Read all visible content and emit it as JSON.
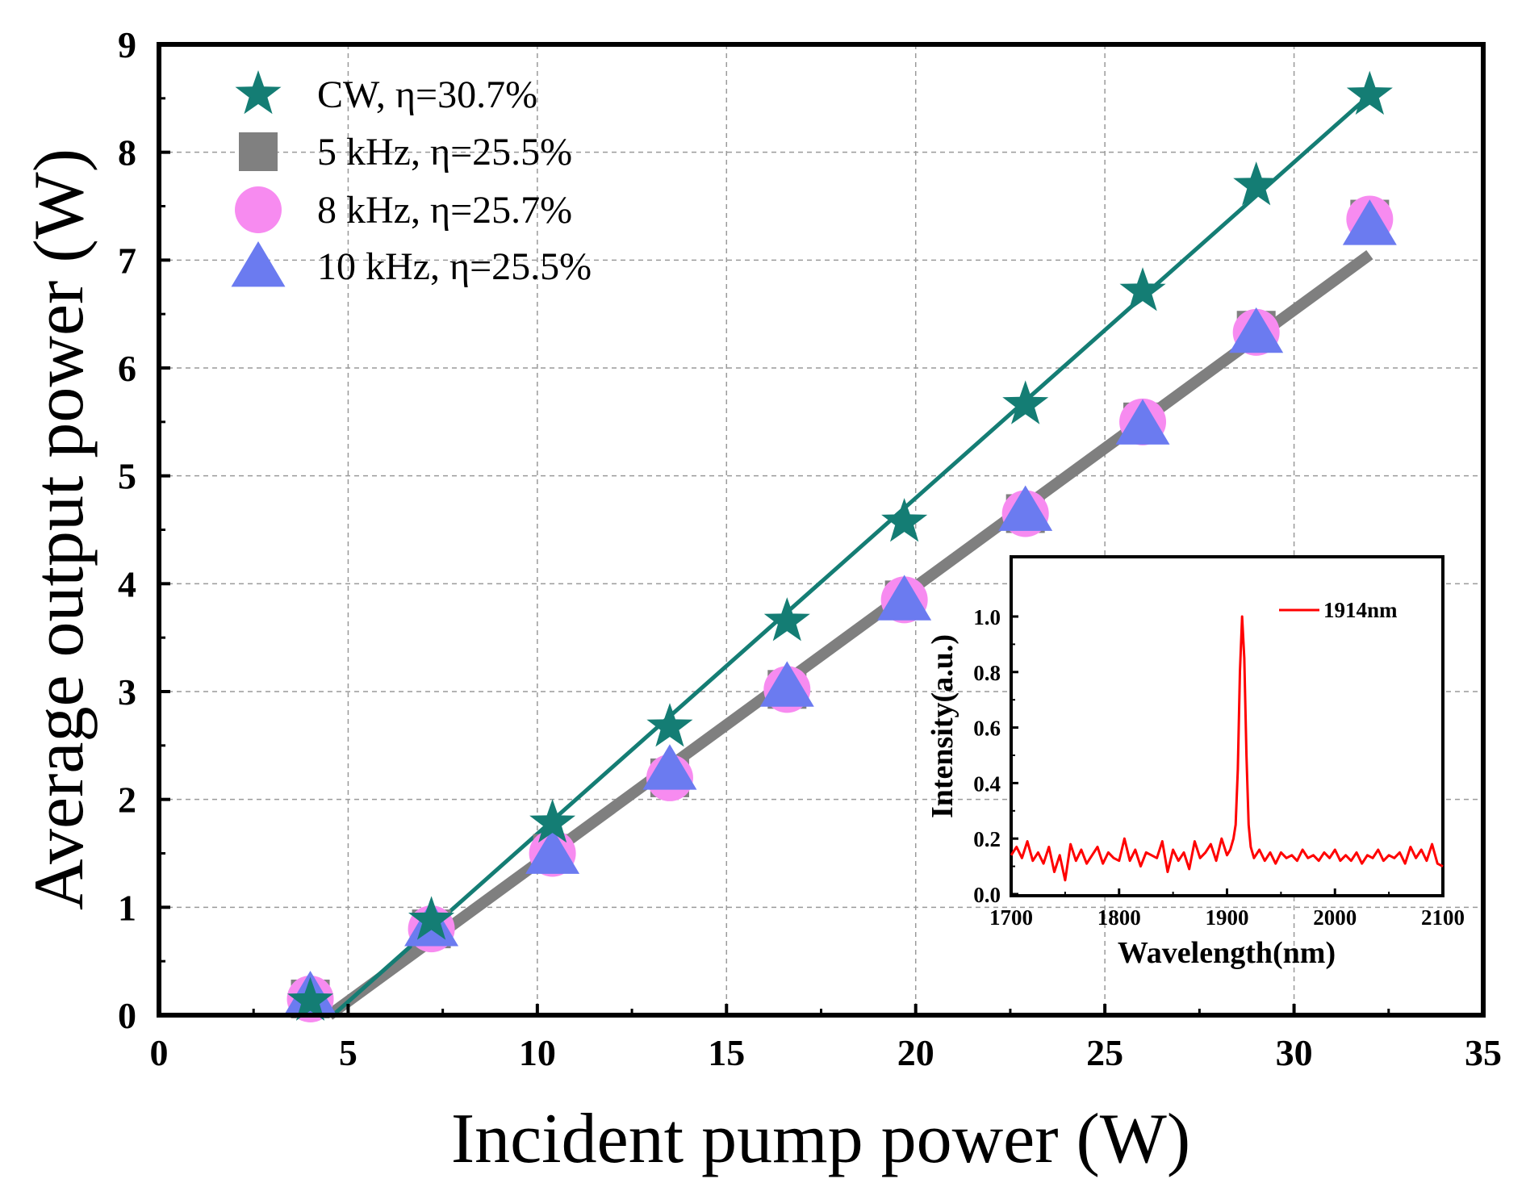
{
  "colors": {
    "cw": "#147D74",
    "fit_pulsed": "#7F7F7F",
    "square_5k": "#808080",
    "circle_8k": "#F78BF0",
    "triangle_10k": "#6B7BF0",
    "inset_line": "#FF0000",
    "grid": "#9A9A9A"
  },
  "chart_data": [
    {
      "type": "scatter",
      "xlabel": "Incident pump power (W)",
      "ylabel": "Average output power (W)",
      "xlim": [
        0,
        35
      ],
      "ylim": [
        0,
        9
      ],
      "xticks": [
        "0",
        "5",
        "10",
        "15",
        "20",
        "25",
        "30",
        "35"
      ],
      "yticks": [
        "0",
        "1",
        "2",
        "3",
        "4",
        "5",
        "6",
        "7",
        "8",
        "9"
      ],
      "grid": true,
      "legend_position": "top-left",
      "series": [
        {
          "name": "CW, η=30.7%",
          "marker": "star",
          "x": [
            4.0,
            7.2,
            10.4,
            13.5,
            16.6,
            19.7,
            22.9,
            26.0,
            29.0,
            32.0
          ],
          "y": [
            0.13,
            0.88,
            1.78,
            2.67,
            3.65,
            4.57,
            5.66,
            6.71,
            7.69,
            8.53
          ],
          "fit": [
            [
              4.6,
              0.0
            ],
            [
              32.0,
              8.53
            ]
          ]
        },
        {
          "name": "5 kHz, η=25.5%",
          "marker": "square",
          "x": [
            4.0,
            7.2,
            10.4,
            13.5,
            16.6,
            19.7,
            22.9,
            26.0,
            29.0,
            32.0
          ],
          "y": [
            0.15,
            0.8,
            1.5,
            2.2,
            3.02,
            3.85,
            4.65,
            5.5,
            6.35,
            7.38
          ],
          "fit": [
            [
              4.5,
              0.0
            ],
            [
              32.0,
              7.05
            ]
          ]
        },
        {
          "name": "8 kHz, η=25.7%",
          "marker": "circle",
          "x": [
            4.0,
            7.2,
            10.4,
            13.5,
            16.6,
            19.7,
            22.9,
            26.0,
            29.0,
            32.0
          ],
          "y": [
            0.15,
            0.8,
            1.5,
            2.2,
            3.02,
            3.85,
            4.65,
            5.5,
            6.33,
            7.38
          ]
        },
        {
          "name": "10 kHz, η=25.5%",
          "marker": "triangle",
          "x": [
            4.0,
            7.2,
            10.4,
            13.5,
            16.6,
            19.7,
            22.9,
            26.0,
            29.0,
            32.0
          ],
          "y": [
            0.18,
            0.83,
            1.5,
            2.28,
            3.05,
            3.85,
            4.68,
            5.48,
            6.33,
            7.33
          ]
        }
      ]
    },
    {
      "type": "line",
      "xlabel": "Wavelength(nm)",
      "ylabel": "Intensity(a.u.)",
      "xlim": [
        1700,
        2100
      ],
      "ylim": [
        0.0,
        1.0
      ],
      "xticks": [
        "1700",
        "1800",
        "1900",
        "2000",
        "2100"
      ],
      "yticks": [
        "0.0",
        "0.2",
        "0.4",
        "0.6",
        "0.8",
        "1.0"
      ],
      "grid": false,
      "legend_position": "top-right",
      "series": [
        {
          "name": "1914nm",
          "x": [
            1700,
            1705,
            1710,
            1715,
            1720,
            1725,
            1730,
            1735,
            1740,
            1745,
            1750,
            1755,
            1760,
            1765,
            1770,
            1775,
            1780,
            1785,
            1790,
            1795,
            1800,
            1805,
            1810,
            1815,
            1820,
            1825,
            1830,
            1835,
            1840,
            1845,
            1850,
            1855,
            1860,
            1865,
            1870,
            1875,
            1880,
            1885,
            1890,
            1895,
            1900,
            1903,
            1906,
            1908,
            1910,
            1912,
            1914,
            1916,
            1918,
            1920,
            1922,
            1925,
            1930,
            1935,
            1940,
            1945,
            1950,
            1955,
            1960,
            1965,
            1970,
            1975,
            1980,
            1985,
            1990,
            1995,
            2000,
            2005,
            2010,
            2015,
            2020,
            2025,
            2030,
            2035,
            2040,
            2045,
            2050,
            2055,
            2060,
            2065,
            2070,
            2075,
            2080,
            2085,
            2090,
            2095,
            2100
          ],
          "y": [
            0.14,
            0.17,
            0.13,
            0.19,
            0.12,
            0.15,
            0.11,
            0.17,
            0.08,
            0.14,
            0.05,
            0.18,
            0.12,
            0.16,
            0.11,
            0.14,
            0.17,
            0.11,
            0.15,
            0.13,
            0.12,
            0.2,
            0.12,
            0.16,
            0.1,
            0.15,
            0.14,
            0.13,
            0.19,
            0.08,
            0.16,
            0.12,
            0.15,
            0.09,
            0.19,
            0.13,
            0.15,
            0.18,
            0.12,
            0.2,
            0.14,
            0.16,
            0.2,
            0.25,
            0.45,
            0.8,
            1.0,
            0.85,
            0.5,
            0.25,
            0.17,
            0.13,
            0.16,
            0.12,
            0.15,
            0.11,
            0.15,
            0.13,
            0.14,
            0.12,
            0.16,
            0.13,
            0.14,
            0.12,
            0.15,
            0.13,
            0.16,
            0.12,
            0.14,
            0.12,
            0.15,
            0.11,
            0.14,
            0.13,
            0.16,
            0.12,
            0.14,
            0.13,
            0.15,
            0.11,
            0.17,
            0.13,
            0.16,
            0.12,
            0.18,
            0.11,
            0.1
          ]
        }
      ]
    }
  ]
}
